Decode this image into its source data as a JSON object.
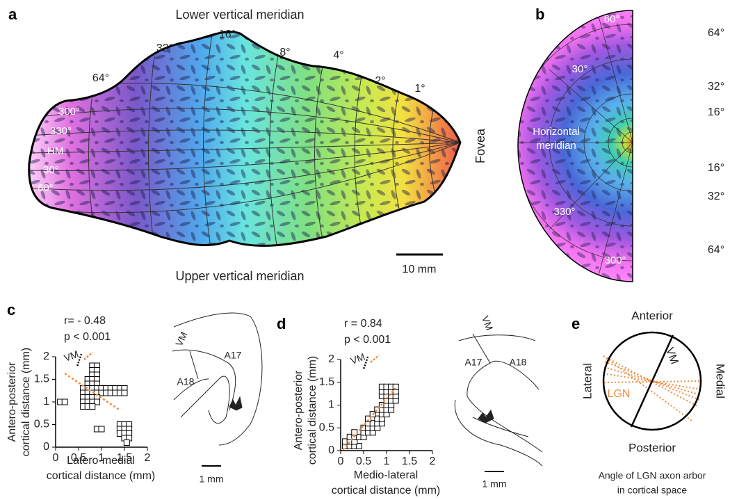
{
  "panels": {
    "a": {
      "label": "a",
      "top": "Lower vertical meridian",
      "bottom": "Upper vertical meridian",
      "side": "Fovea",
      "eccentricity": [
        "64°",
        "32°",
        "16°",
        "8°",
        "4°",
        "2°",
        "1°"
      ],
      "polar_angle": [
        "300°",
        "330°",
        "HM",
        "30°",
        "60°"
      ],
      "scale_bar": "10 mm"
    },
    "b": {
      "label": "b",
      "meridian": [
        "Horizontal",
        "meridian"
      ],
      "polar_angle": [
        "60°",
        "30°",
        "330°",
        "300°"
      ],
      "eccentricity": [
        "64°",
        "32°",
        "16°",
        "16°",
        "32°",
        "64°"
      ]
    },
    "c": {
      "label": "c",
      "histology": {
        "vm": "VM",
        "areas": [
          "A17",
          "A18"
        ],
        "scale_bar": "1 mm"
      }
    },
    "d": {
      "label": "d",
      "histology": {
        "vm": "VM",
        "areas": [
          "A17",
          "A18"
        ],
        "scale_bar": "1 mm"
      }
    },
    "e": {
      "label": "e",
      "directions": [
        "Anterior",
        "Posterior",
        "Lateral",
        "Medial"
      ],
      "vm": "VM",
      "lgn": "LGN",
      "caption": [
        "Angle of LGN axon arbor",
        "in cortical space"
      ]
    }
  },
  "chart_data": [
    {
      "type": "scatter",
      "annotations": [
        "r= - 0.48",
        "p < 0.001"
      ],
      "inset_label": "VM",
      "xlabel": [
        "Latero-medial",
        "cortical distance (mm)"
      ],
      "ylabel": [
        "Antero-posterior",
        "cortical distance (mm)"
      ],
      "xlim": [
        0,
        2
      ],
      "ylim": [
        0,
        2
      ],
      "xticks": [
        0,
        0.5,
        1,
        1.5,
        2
      ],
      "yticks": [
        0,
        0.5,
        1,
        1.5,
        2
      ],
      "x": [
        0.1,
        0.2,
        0.8,
        0.9,
        0.8,
        0.9,
        0.8,
        0.9,
        0.7,
        0.8,
        0.9,
        0.7,
        0.8,
        0.9,
        0.6,
        0.7,
        0.8,
        0.9,
        1.0,
        1.1,
        1.2,
        1.3,
        1.4,
        1.5,
        0.6,
        0.7,
        0.8,
        0.9,
        1.0,
        1.1,
        1.2,
        1.3,
        1.4,
        1.5,
        0.6,
        0.7,
        0.8,
        0.9,
        0.6,
        0.7,
        0.8,
        0.9,
        0.6,
        0.7,
        0.8,
        0.9,
        1.0,
        1.4,
        1.5,
        1.6,
        1.4,
        1.5,
        1.6,
        1.4,
        1.5,
        1.6,
        1.5,
        1.6,
        1.55
      ],
      "y": [
        1.0,
        1.0,
        1.8,
        1.8,
        1.7,
        1.7,
        1.6,
        1.6,
        1.5,
        1.5,
        1.5,
        1.4,
        1.4,
        1.4,
        1.3,
        1.3,
        1.3,
        1.3,
        1.3,
        1.3,
        1.3,
        1.3,
        1.3,
        1.3,
        1.2,
        1.2,
        1.2,
        1.2,
        1.2,
        1.2,
        1.2,
        1.2,
        1.2,
        1.2,
        1.1,
        1.1,
        1.1,
        1.1,
        1.0,
        1.0,
        1.0,
        1.0,
        0.9,
        0.9,
        0.9,
        0.4,
        0.4,
        0.5,
        0.5,
        0.5,
        0.4,
        0.4,
        0.4,
        0.3,
        0.3,
        0.3,
        0.2,
        0.2,
        0.1
      ],
      "fit": {
        "x": [
          0.2,
          1.4
        ],
        "y": [
          1.63,
          0.82
        ],
        "color": "#f08a3c"
      },
      "marker_color": "#000000"
    },
    {
      "type": "scatter",
      "annotations": [
        "r = 0.84",
        "p < 0.001"
      ],
      "inset_label": "VM",
      "xlabel": [
        "Medio-lateral",
        "cortical distance (mm)"
      ],
      "ylabel": [
        "Antero-posterior",
        "cortical distance (mm)"
      ],
      "xlim": [
        0,
        2
      ],
      "ylim": [
        0,
        2
      ],
      "xticks": [
        0,
        0.5,
        1,
        1.5,
        2
      ],
      "yticks": [
        0,
        0.5,
        1,
        1.5,
        2
      ],
      "x": [
        0.1,
        0.2,
        0.3,
        0.4,
        0.1,
        0.2,
        0.3,
        0.2,
        0.3,
        0.4,
        0.5,
        0.3,
        0.5,
        0.6,
        0.7,
        0.5,
        0.6,
        0.7,
        0.8,
        0.6,
        0.7,
        0.8,
        0.9,
        0.6,
        0.8,
        0.9,
        0.7,
        0.9,
        1.0,
        0.8,
        0.9,
        1.0,
        1.1,
        0.9,
        1.0,
        1.1,
        1.0,
        1.1,
        1.2,
        0.9,
        1.0,
        1.1,
        1.2,
        0.9,
        1.0,
        1.1,
        1.2,
        0.9,
        1.0,
        1.1,
        1.2
      ],
      "y": [
        0.1,
        0.1,
        0.1,
        0.1,
        0.2,
        0.2,
        0.2,
        0.3,
        0.3,
        0.3,
        0.3,
        0.4,
        0.4,
        0.4,
        0.4,
        0.5,
        0.5,
        0.5,
        0.5,
        0.6,
        0.6,
        0.6,
        0.6,
        0.7,
        0.7,
        0.7,
        0.8,
        0.8,
        0.8,
        0.9,
        0.9,
        0.9,
        0.9,
        1.0,
        1.0,
        1.0,
        1.1,
        1.1,
        1.1,
        1.2,
        1.2,
        1.2,
        1.2,
        1.3,
        1.3,
        1.3,
        1.3,
        1.4,
        1.4,
        1.4,
        1.4
      ],
      "fit": {
        "x": [
          0.05,
          1.2
        ],
        "y": [
          0.02,
          1.38
        ],
        "color": "#f08a3c"
      },
      "marker_color": "#000000"
    }
  ]
}
